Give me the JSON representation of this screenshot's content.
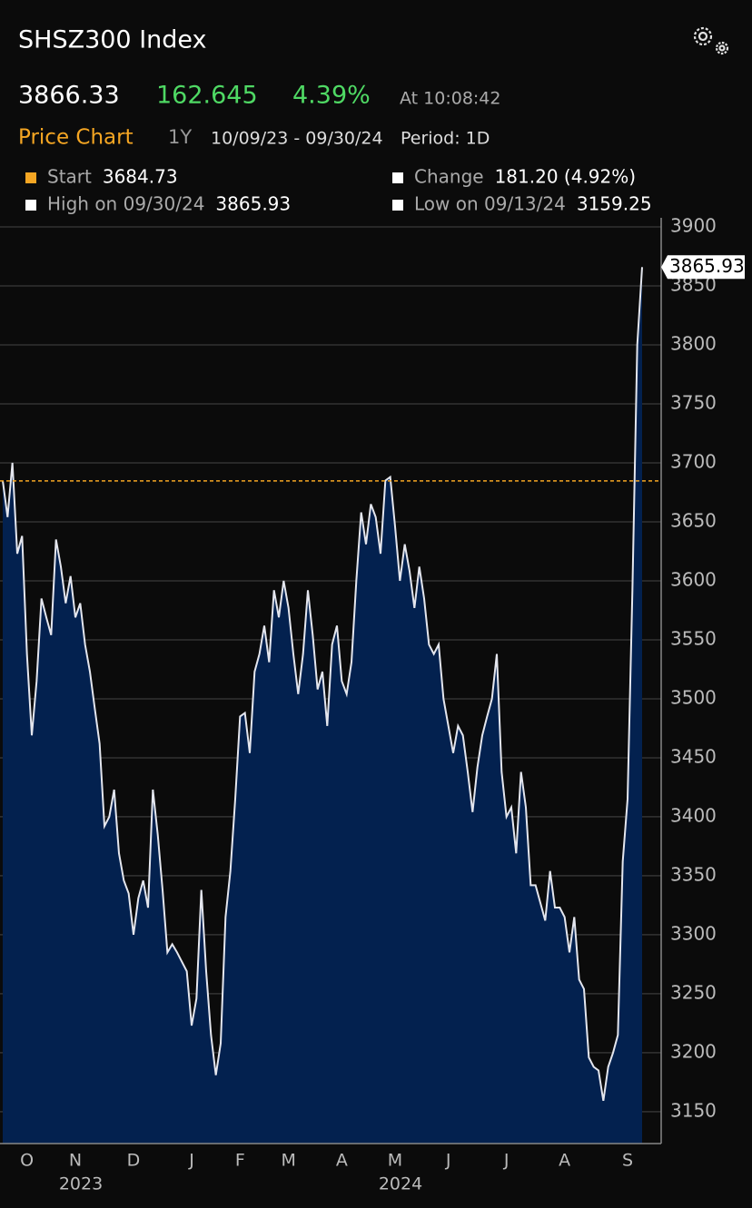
{
  "header": {
    "title": "SHSZ300 Index",
    "price": "3866.33",
    "change": "162.645",
    "change_pct": "4.39%",
    "time": "At 10:08:42",
    "chart_label": "Price Chart",
    "range": "1Y",
    "dates": "10/09/23 - 09/30/24",
    "period": "Period: 1D"
  },
  "chart_data": {
    "type": "area",
    "color": "#e4e6ee",
    "fill": "#03214f",
    "grid": true,
    "ylim": [
      3123,
      3900
    ],
    "yticks": [
      3150,
      3200,
      3250,
      3300,
      3350,
      3400,
      3450,
      3500,
      3550,
      3600,
      3650,
      3700,
      3750,
      3800,
      3850,
      3900
    ],
    "categories": [
      null,
      null,
      null,
      null,
      null,
      "O",
      null,
      null,
      null,
      null,
      null,
      null,
      null,
      null,
      null,
      "N",
      null,
      null,
      null,
      null,
      null,
      null,
      null,
      null,
      null,
      null,
      null,
      "D",
      null,
      null,
      null,
      null,
      null,
      null,
      null,
      null,
      null,
      null,
      null,
      "J",
      null,
      null,
      null,
      null,
      null,
      null,
      null,
      null,
      null,
      "F",
      null,
      null,
      null,
      null,
      null,
      null,
      null,
      null,
      null,
      "M",
      null,
      null,
      null,
      null,
      null,
      null,
      null,
      null,
      null,
      null,
      "A",
      null,
      null,
      null,
      null,
      null,
      null,
      null,
      null,
      null,
      null,
      "M",
      null,
      null,
      null,
      null,
      null,
      null,
      null,
      null,
      null,
      null,
      "J",
      null,
      null,
      null,
      null,
      null,
      null,
      null,
      null,
      null,
      null,
      null,
      "J",
      null,
      null,
      null,
      null,
      null,
      null,
      null,
      null,
      null,
      null,
      null,
      "A",
      null,
      null,
      null,
      null,
      null,
      null,
      null,
      null,
      null,
      null,
      null,
      null,
      "S",
      null,
      null,
      null
    ],
    "values": [
      3685,
      3654,
      3700,
      3623,
      3638,
      3538,
      3469,
      3515,
      3585,
      3569,
      3554,
      3635,
      3612,
      3581,
      3604,
      3569,
      3581,
      3546,
      3523,
      3492,
      3462,
      3392,
      3400,
      3423,
      3369,
      3346,
      3335,
      3300,
      3331,
      3346,
      3323,
      3423,
      3385,
      3338,
      3285,
      3292,
      3285,
      3277,
      3269,
      3223,
      3246,
      3338,
      3269,
      3215,
      3181,
      3208,
      3315,
      3354,
      3415,
      3485,
      3488,
      3454,
      3523,
      3538,
      3562,
      3531,
      3592,
      3569,
      3600,
      3577,
      3538,
      3504,
      3538,
      3592,
      3554,
      3508,
      3523,
      3477,
      3546,
      3562,
      3515,
      3504,
      3531,
      3600,
      3658,
      3631,
      3665,
      3654,
      3623,
      3685,
      3688,
      3646,
      3600,
      3631,
      3608,
      3577,
      3612,
      3585,
      3546,
      3538,
      3546,
      3500,
      3477,
      3454,
      3477,
      3469,
      3438,
      3404,
      3442,
      3469,
      3485,
      3500,
      3538,
      3438,
      3400,
      3408,
      3369,
      3438,
      3408,
      3342,
      3342,
      3327,
      3312,
      3354,
      3323,
      3323,
      3315,
      3285,
      3315,
      3262,
      3254,
      3196,
      3188,
      3185,
      3159.25,
      3188,
      3200,
      3215,
      3362,
      3415,
      3592,
      3800,
      3865.93
    ],
    "year_labels": [
      {
        "label": "2023",
        "month": "N"
      },
      {
        "label": "2024",
        "month": "M"
      }
    ],
    "stats": {
      "start": {
        "label": "Start",
        "value": 3684.73,
        "color": "#f5a623"
      },
      "change": {
        "label": "Change",
        "value": "181.20 (4.92%)"
      },
      "high": {
        "label": "High on 09/30/24",
        "value": 3865.93
      },
      "low": {
        "label": "Low on 09/13/24",
        "value": 3159.25
      }
    }
  }
}
